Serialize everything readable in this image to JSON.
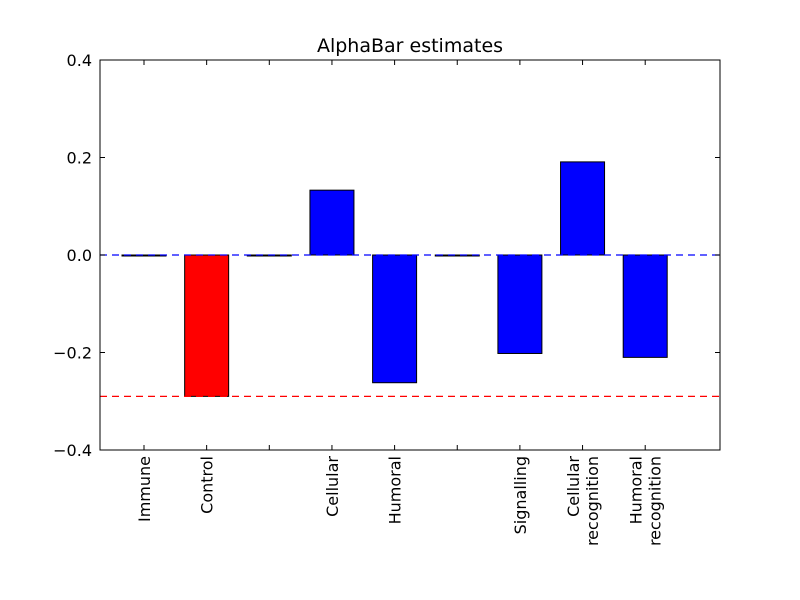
{
  "chart_data": {
    "type": "bar",
    "title": "AlphaBar estimates",
    "xlabel": "",
    "ylabel": "",
    "ylim": [
      -0.4,
      0.4
    ],
    "yticks": [
      0.4,
      0.2,
      0.0,
      -0.2,
      -0.4
    ],
    "ytick_labels": [
      "0.4",
      "0.2",
      "0.0",
      "−0.2",
      "−0.4"
    ],
    "grid": false,
    "categories": [
      "Immune",
      "Control",
      "",
      "Cellular",
      "Humoral",
      "",
      "Signalling",
      "Cellular\nrecognition",
      "Humoral\nrecognition"
    ],
    "values": [
      0.0,
      -0.29,
      0.0,
      0.133,
      -0.262,
      0.0,
      -0.202,
      0.191,
      -0.21
    ],
    "bar_colors": [
      "#000000",
      "#ff0000",
      "#000000",
      "#0000ff",
      "#0000ff",
      "#000000",
      "#0000ff",
      "#0000ff",
      "#0000ff"
    ],
    "reference_lines": [
      {
        "y": 0.0,
        "color": "#0000ff",
        "style": "dashed"
      },
      {
        "y": -0.29,
        "color": "#ff0000",
        "style": "dashed"
      }
    ]
  }
}
